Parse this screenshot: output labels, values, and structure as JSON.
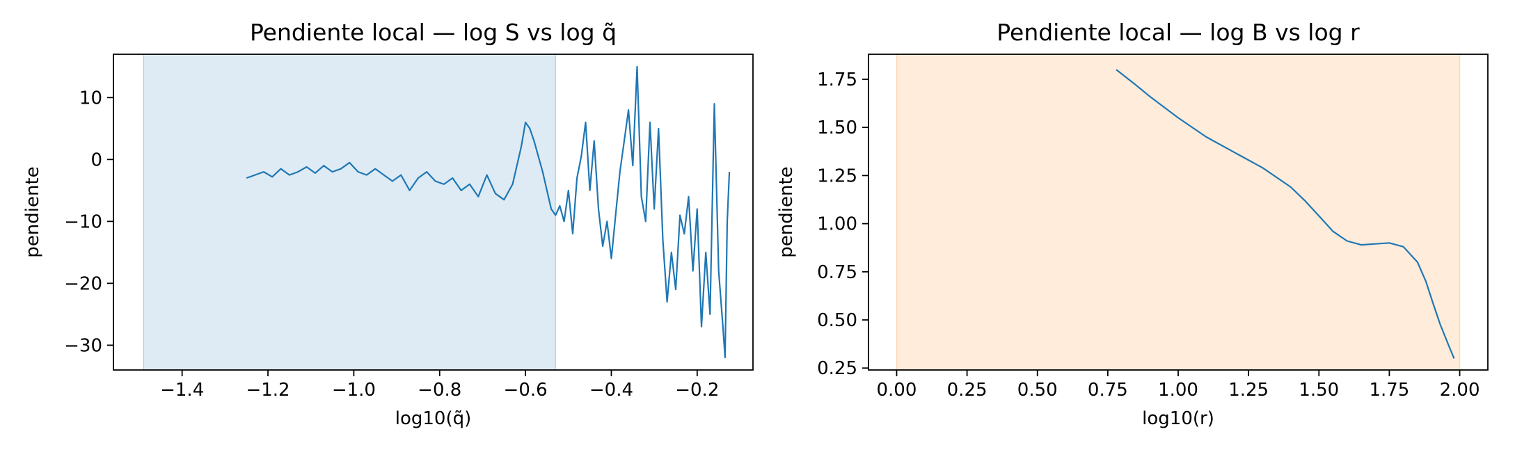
{
  "chart_data": [
    {
      "type": "line",
      "title": "Pendiente local — log S vs log q̃",
      "xlabel": "log10(q̃)",
      "ylabel": "pendiente",
      "xlim": [
        -1.56,
        -0.07
      ],
      "ylim": [
        -34,
        17
      ],
      "xticks": [
        -1.4,
        -1.2,
        -1.0,
        -0.8,
        -0.6,
        -0.4,
        -0.2
      ],
      "xtick_labels": [
        "−1.4",
        "−1.2",
        "−1.0",
        "−0.8",
        "−0.6",
        "−0.4",
        "−0.2"
      ],
      "yticks": [
        10,
        0,
        -10,
        -20,
        -30
      ],
      "ytick_labels": [
        "10",
        "0",
        "−10",
        "−20",
        "−30"
      ],
      "shaded_region": {
        "x": [
          -1.49,
          -0.53
        ],
        "color": "#1f77b4",
        "alpha": 0.15
      },
      "line_color": "#1f77b4",
      "grid": false,
      "series": [
        {
          "x": [
            -1.25,
            -1.23,
            -1.21,
            -1.19,
            -1.17,
            -1.15,
            -1.13,
            -1.11,
            -1.09,
            -1.07,
            -1.05,
            -1.03,
            -1.01,
            -0.99,
            -0.97,
            -0.95,
            -0.93,
            -0.91,
            -0.89,
            -0.87,
            -0.85,
            -0.83,
            -0.81,
            -0.79,
            -0.77,
            -0.75,
            -0.73,
            -0.71,
            -0.69,
            -0.67,
            -0.65,
            -0.63,
            -0.61,
            -0.6,
            -0.59,
            -0.58,
            -0.57,
            -0.56,
            -0.55,
            -0.54,
            -0.53,
            -0.52,
            -0.51,
            -0.5,
            -0.49,
            -0.48,
            -0.47,
            -0.46,
            -0.45,
            -0.44,
            -0.43,
            -0.42,
            -0.41,
            -0.4,
            -0.39,
            -0.38,
            -0.37,
            -0.36,
            -0.35,
            -0.34,
            -0.33,
            -0.32,
            -0.31,
            -0.3,
            -0.29,
            -0.28,
            -0.27,
            -0.26,
            -0.25,
            -0.24,
            -0.23,
            -0.22,
            -0.21,
            -0.2,
            -0.19,
            -0.18,
            -0.17,
            -0.16,
            -0.15,
            -0.14,
            -0.135,
            -0.13,
            -0.125
          ],
          "y": [
            -3.0,
            -2.5,
            -2.0,
            -2.8,
            -1.5,
            -2.5,
            -2.0,
            -1.2,
            -2.2,
            -1.0,
            -2.0,
            -1.5,
            -0.5,
            -2.0,
            -2.5,
            -1.5,
            -2.5,
            -3.5,
            -2.5,
            -5.0,
            -3.0,
            -2.0,
            -3.5,
            -4.0,
            -3.0,
            -5.0,
            -4.0,
            -6.0,
            -2.5,
            -5.5,
            -6.5,
            -4.0,
            2.0,
            6.0,
            5.0,
            3.0,
            0.5,
            -2.0,
            -5.0,
            -8.0,
            -9.0,
            -7.5,
            -10.0,
            -5.0,
            -12.0,
            -3.0,
            0.5,
            6.0,
            -5.0,
            3.0,
            -8.0,
            -14.0,
            -10.0,
            -16.0,
            -9.0,
            -2.0,
            3.0,
            8.0,
            -1.0,
            15.0,
            -6.0,
            -10.0,
            6.0,
            -8.0,
            5.0,
            -13.0,
            -23.0,
            -15.0,
            -21.0,
            -9.0,
            -12.0,
            -6.0,
            -18.0,
            -8.0,
            -27.0,
            -15.0,
            -25.0,
            9.0,
            -18.0,
            -27.0,
            -32.0,
            -10.0,
            -2.0
          ]
        }
      ]
    },
    {
      "type": "line",
      "title": "Pendiente local — log B vs log r",
      "xlabel": "log10(r)",
      "ylabel": "pendiente",
      "xlim": [
        -0.1,
        2.1
      ],
      "ylim": [
        0.24,
        1.88
      ],
      "xticks": [
        0,
        0.25,
        0.5,
        0.75,
        1.0,
        1.25,
        1.5,
        1.75,
        2.0
      ],
      "xtick_labels": [
        "0.00",
        "0.25",
        "0.50",
        "0.75",
        "1.00",
        "1.25",
        "1.50",
        "1.75",
        "2.00"
      ],
      "yticks": [
        1.75,
        1.5,
        1.25,
        1.0,
        0.75,
        0.5,
        0.25
      ],
      "ytick_labels": [
        "1.75",
        "1.50",
        "1.25",
        "1.00",
        "0.75",
        "0.50",
        "0.25"
      ],
      "shaded_region": {
        "x": [
          0.0,
          2.0
        ],
        "color": "#ff7f0e",
        "alpha": 0.15
      },
      "line_color": "#1f77b4",
      "grid": false,
      "series": [
        {
          "x": [
            0.78,
            0.85,
            0.9,
            1.0,
            1.1,
            1.2,
            1.3,
            1.4,
            1.45,
            1.5,
            1.55,
            1.6,
            1.65,
            1.7,
            1.75,
            1.8,
            1.85,
            1.88,
            1.9,
            1.93,
            1.96,
            1.98
          ],
          "y": [
            1.8,
            1.72,
            1.66,
            1.55,
            1.45,
            1.37,
            1.29,
            1.19,
            1.12,
            1.04,
            0.96,
            0.91,
            0.89,
            0.895,
            0.9,
            0.88,
            0.8,
            0.7,
            0.61,
            0.48,
            0.37,
            0.3
          ]
        }
      ]
    }
  ]
}
